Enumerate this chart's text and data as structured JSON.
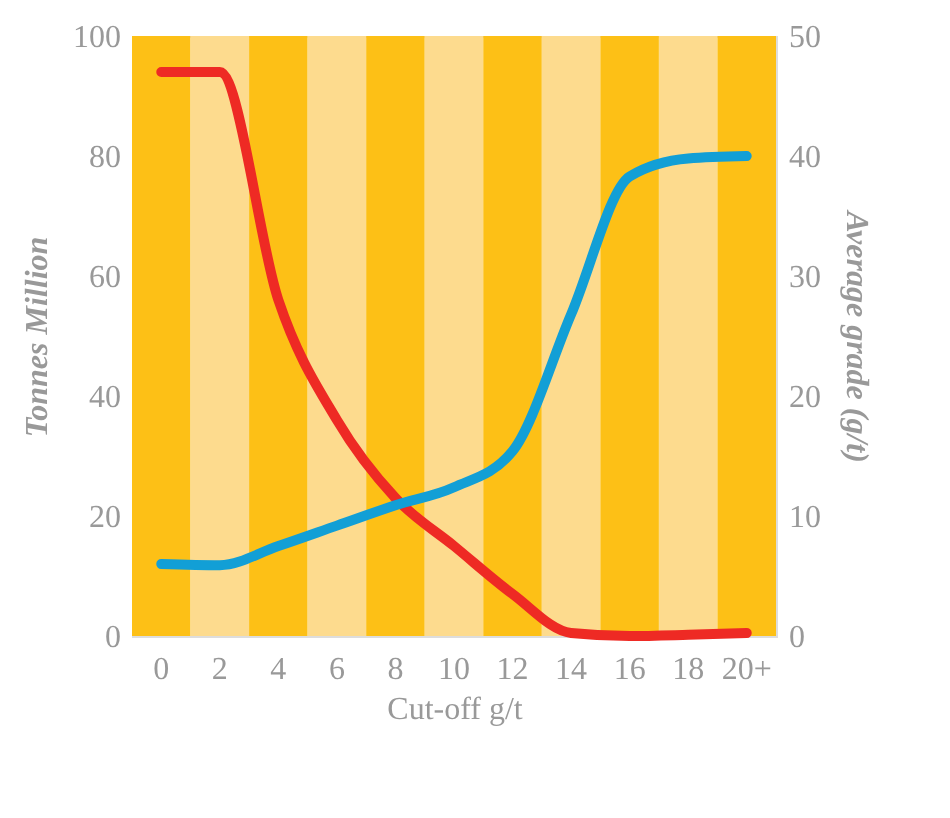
{
  "chart_data": {
    "type": "line",
    "categories": [
      "0",
      "2",
      "4",
      "6",
      "8",
      "10",
      "12",
      "14",
      "16",
      "18",
      "20+"
    ],
    "xlabel": "Cut-off g/t",
    "ylabel": "Tonnes Million",
    "y2label": "Average grade (g/t)",
    "series": [
      {
        "name": null,
        "color": "#ee2a24",
        "values": [
          94,
          94,
          56,
          36,
          23,
          15,
          7,
          0.5,
          0,
          0.2,
          0.5
        ]
      },
      {
        "name": null,
        "color": "#129fd6",
        "axis": "y2",
        "values": [
          6.0,
          5.9,
          7.5,
          9.2,
          10.9,
          12.4,
          15.4,
          26.8,
          38.3,
          39.8,
          40
        ]
      }
    ],
    "ylim": [
      0,
      100
    ],
    "yticks": [
      0,
      20,
      40,
      60,
      80,
      100
    ],
    "y2lim": [
      0,
      50
    ],
    "y2ticks": [
      0,
      10,
      20,
      30,
      40,
      50
    ],
    "bands": [
      {
        "axis": "x",
        "from": "0",
        "to": "0",
        "color": "#fdc016"
      },
      {
        "axis": "x",
        "from": "2",
        "to": "2",
        "color": "#fddb8e"
      },
      {
        "axis": "x",
        "from": "4",
        "to": "4",
        "color": "#fdc016"
      },
      {
        "axis": "x",
        "from": "6",
        "to": "6",
        "color": "#fddb8e"
      },
      {
        "axis": "x",
        "from": "8",
        "to": "8",
        "color": "#fdc016"
      },
      {
        "axis": "x",
        "from": "10",
        "to": "10",
        "color": "#fddb8e"
      },
      {
        "axis": "x",
        "from": "12",
        "to": "12",
        "color": "#fdc016"
      },
      {
        "axis": "x",
        "from": "14",
        "to": "14",
        "color": "#fddb8e"
      },
      {
        "axis": "x",
        "from": "16",
        "to": "16",
        "color": "#fdc016"
      },
      {
        "axis": "x",
        "from": "18",
        "to": "18",
        "color": "#fddb8e"
      },
      {
        "axis": "x",
        "from": "20+",
        "to": "20+",
        "color": "#fdc016"
      }
    ],
    "grid": false,
    "line_style": "solid",
    "marker": "none"
  }
}
